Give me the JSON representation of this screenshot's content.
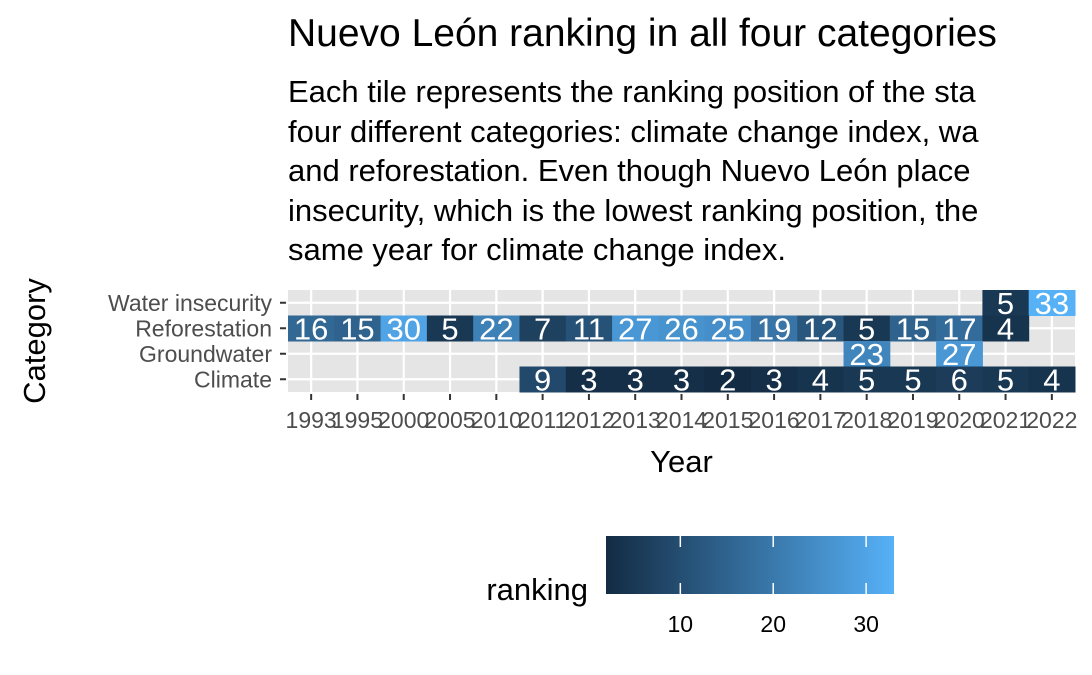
{
  "chart_data": {
    "type": "heatmap",
    "title": "Nuevo León ranking in all four categories",
    "subtitle_lines": [
      "Each tile represents the ranking position of the sta",
      "four different categories: climate change index, wa",
      "and reforestation. Even though Nuevo León place",
      "insecurity, which is the lowest ranking position, the",
      "same year for climate change index."
    ],
    "xlabel": "Year",
    "ylabel": "Category",
    "x_categories": [
      "1993",
      "1995",
      "2000",
      "2005",
      "2010",
      "2011",
      "2012",
      "2013",
      "2014",
      "2015",
      "2016",
      "2017",
      "2018",
      "2019",
      "2020",
      "2021",
      "2022"
    ],
    "y_categories": [
      "Water insecurity",
      "Reforestation",
      "Groundwater",
      "Climate"
    ],
    "cells": [
      {
        "category": "Water insecurity",
        "year": "2021",
        "value": 5
      },
      {
        "category": "Water insecurity",
        "year": "2022",
        "value": 33
      },
      {
        "category": "Reforestation",
        "year": "1993",
        "value": 16
      },
      {
        "category": "Reforestation",
        "year": "1995",
        "value": 15
      },
      {
        "category": "Reforestation",
        "year": "2000",
        "value": 30
      },
      {
        "category": "Reforestation",
        "year": "2005",
        "value": 5
      },
      {
        "category": "Reforestation",
        "year": "2010",
        "value": 22
      },
      {
        "category": "Reforestation",
        "year": "2011",
        "value": 7
      },
      {
        "category": "Reforestation",
        "year": "2012",
        "value": 11
      },
      {
        "category": "Reforestation",
        "year": "2013",
        "value": 27
      },
      {
        "category": "Reforestation",
        "year": "2014",
        "value": 26
      },
      {
        "category": "Reforestation",
        "year": "2015",
        "value": 25
      },
      {
        "category": "Reforestation",
        "year": "2016",
        "value": 19
      },
      {
        "category": "Reforestation",
        "year": "2017",
        "value": 12
      },
      {
        "category": "Reforestation",
        "year": "2018",
        "value": 5
      },
      {
        "category": "Reforestation",
        "year": "2019",
        "value": 15
      },
      {
        "category": "Reforestation",
        "year": "2020",
        "value": 17
      },
      {
        "category": "Reforestation",
        "year": "2021",
        "value": 4
      },
      {
        "category": "Groundwater",
        "year": "2018",
        "value": 23
      },
      {
        "category": "Groundwater",
        "year": "2020",
        "value": 27
      },
      {
        "category": "Climate",
        "year": "2011",
        "value": 9
      },
      {
        "category": "Climate",
        "year": "2012",
        "value": 3
      },
      {
        "category": "Climate",
        "year": "2013",
        "value": 3
      },
      {
        "category": "Climate",
        "year": "2014",
        "value": 3
      },
      {
        "category": "Climate",
        "year": "2015",
        "value": 2
      },
      {
        "category": "Climate",
        "year": "2016",
        "value": 3
      },
      {
        "category": "Climate",
        "year": "2017",
        "value": 4
      },
      {
        "category": "Climate",
        "year": "2018",
        "value": 5
      },
      {
        "category": "Climate",
        "year": "2019",
        "value": 5
      },
      {
        "category": "Climate",
        "year": "2020",
        "value": 6
      },
      {
        "category": "Climate",
        "year": "2021",
        "value": 5
      },
      {
        "category": "Climate",
        "year": "2022",
        "value": 4
      }
    ],
    "color_scale": {
      "low": "#132B43",
      "high": "#56B1F7",
      "min": 2,
      "max": 33
    },
    "legend": {
      "title": "ranking",
      "ticks": [
        10,
        20,
        30
      ],
      "placement": "bottom"
    },
    "panel_background": "#e5e5e5",
    "grid": true
  }
}
